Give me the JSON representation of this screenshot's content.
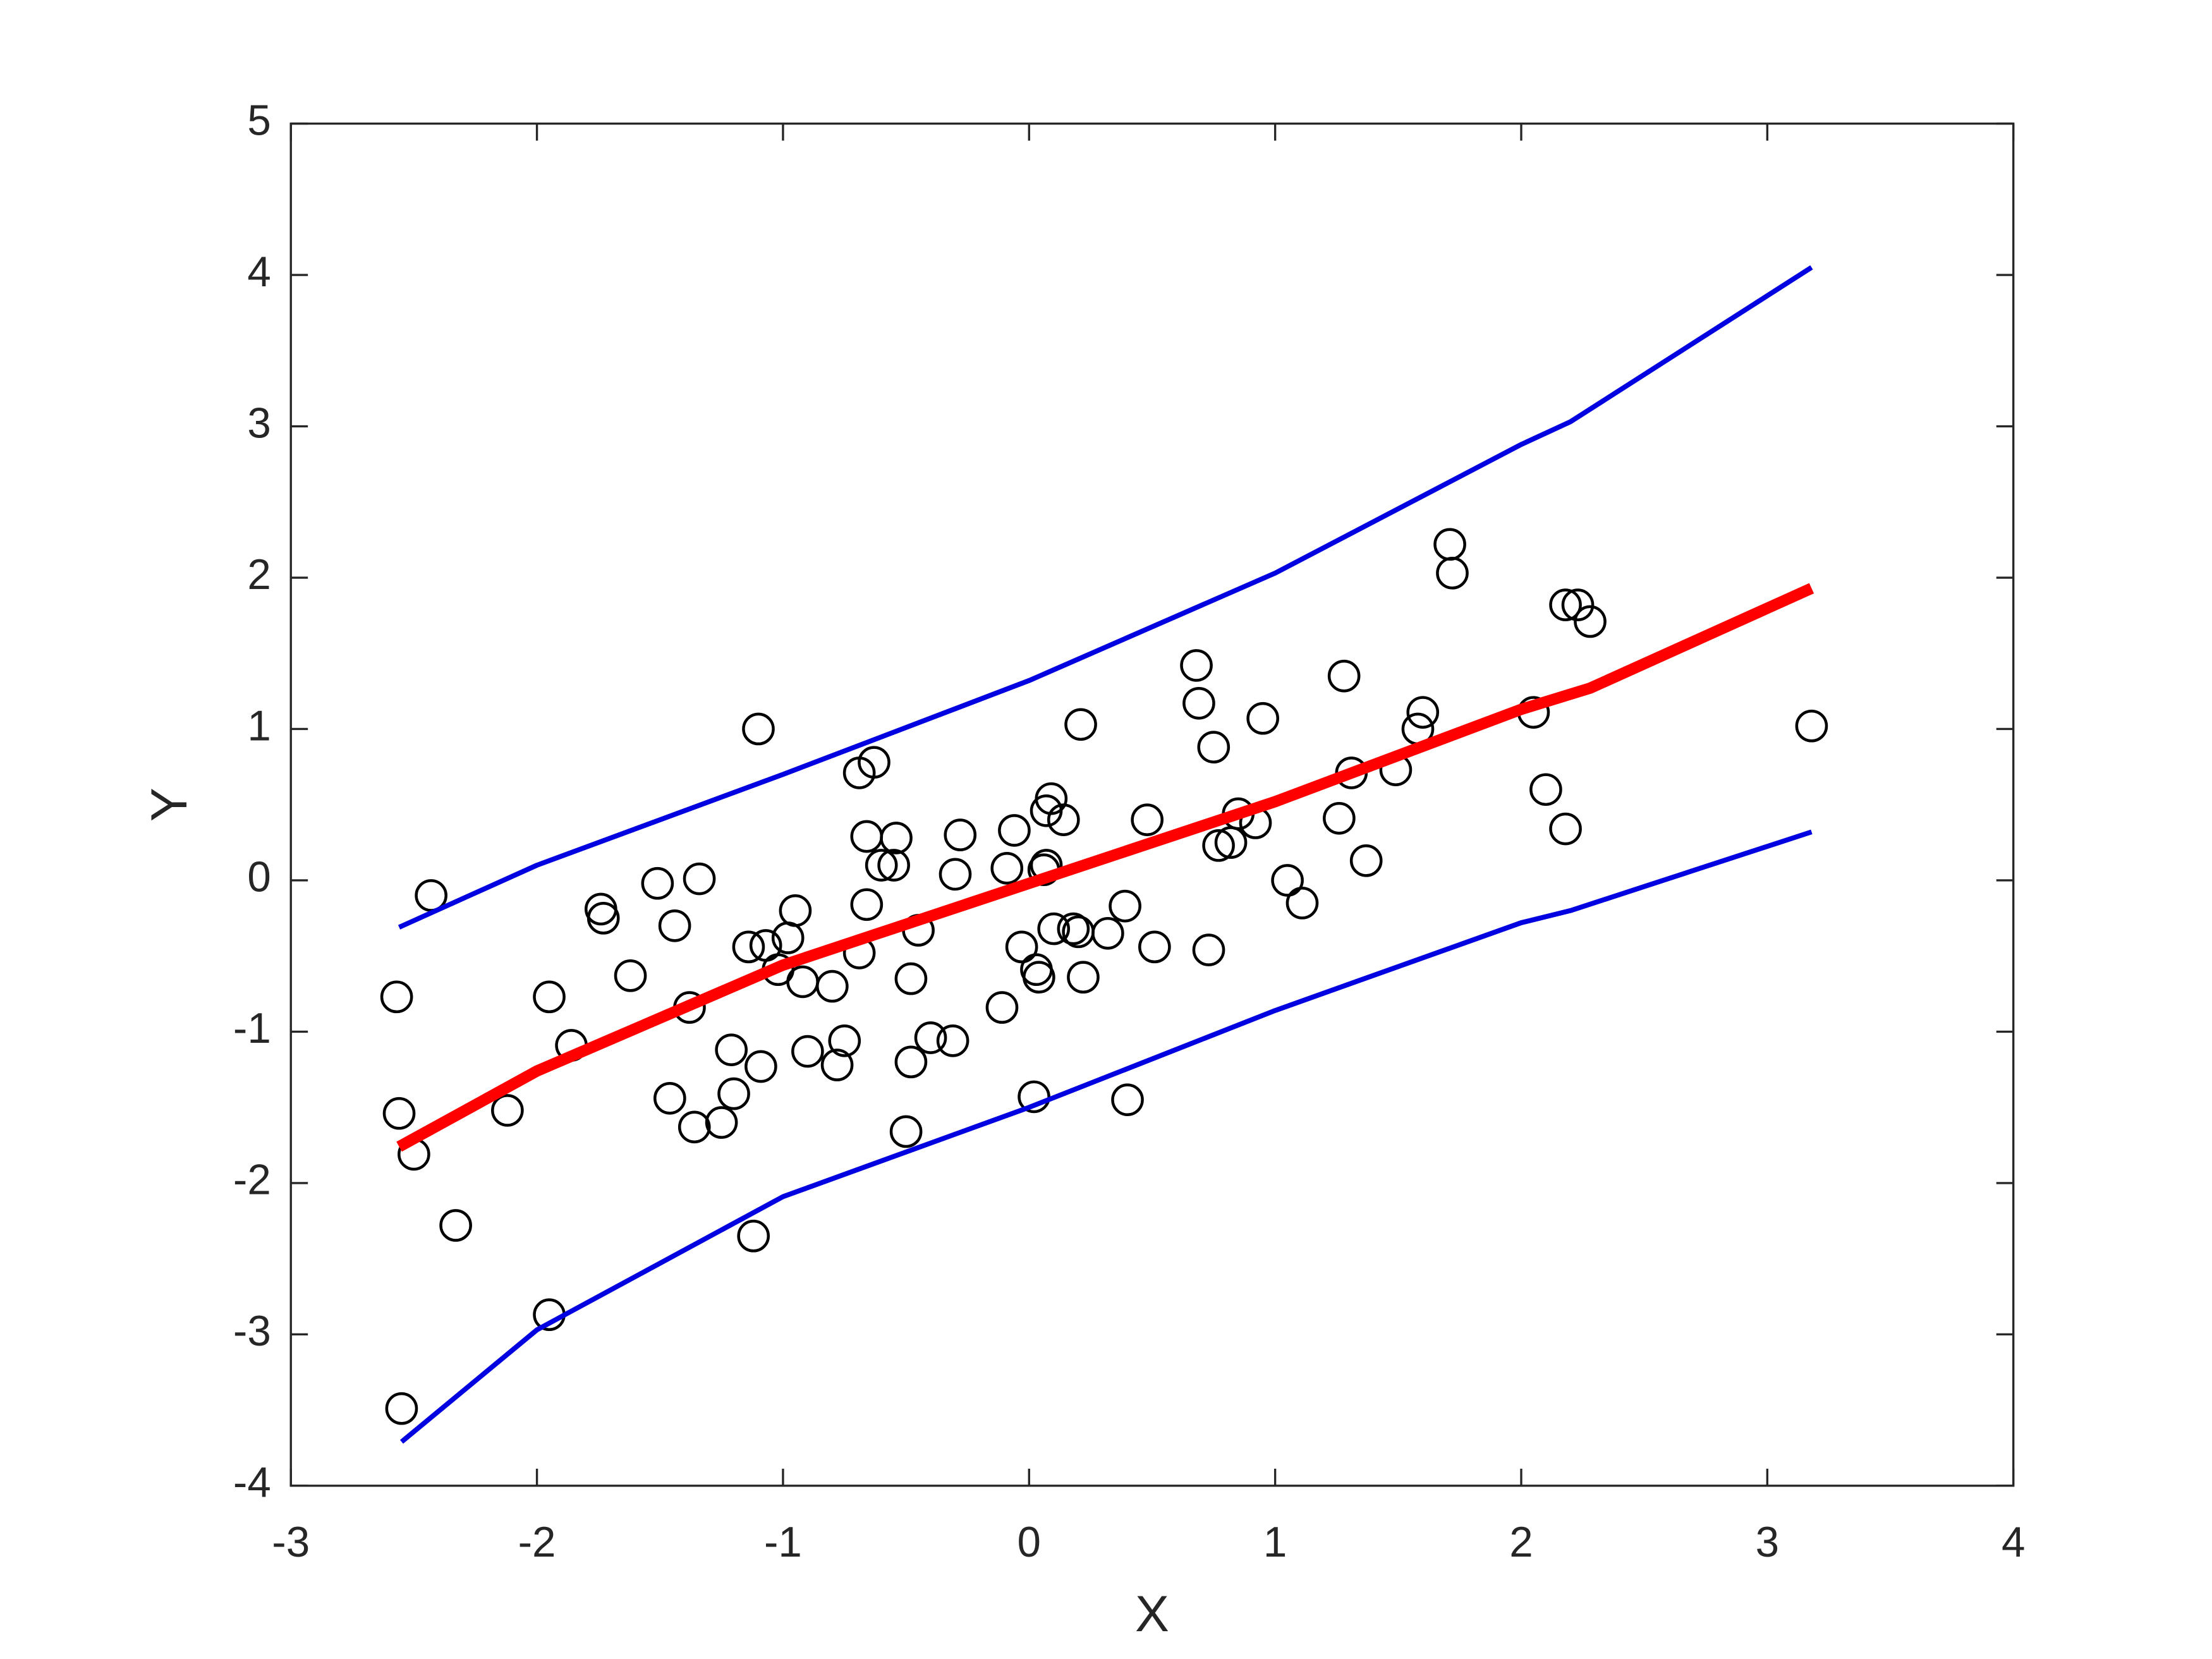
{
  "chart_data": {
    "type": "scatter",
    "x_label": "X",
    "y_label": "Y",
    "xlim": [
      -3,
      4
    ],
    "ylim": [
      -4,
      5
    ],
    "xticks": [
      -3,
      -2,
      -1,
      0,
      1,
      2,
      3,
      4
    ],
    "yticks": [
      -4,
      -3,
      -2,
      -1,
      0,
      1,
      2,
      3,
      4,
      5
    ],
    "grid": false,
    "series": [
      {
        "type": "scatter",
        "color": "#000000",
        "x": [
          -2.57,
          -2.56,
          -2.55,
          -2.5,
          -2.43,
          -2.33,
          -2.12,
          -1.95,
          -1.95,
          -1.86,
          -1.74,
          -1.73,
          -1.62,
          -1.51,
          -1.46,
          -1.44,
          -1.38,
          -1.36,
          -1.34,
          -1.25,
          -1.21,
          -1.2,
          -1.14,
          -1.12,
          -1.1,
          -1.09,
          -1.07,
          -1.02,
          -0.98,
          -0.95,
          -0.92,
          -0.9,
          -0.8,
          -0.78,
          -0.75,
          -0.69,
          -0.69,
          -0.66,
          -0.66,
          -0.63,
          -0.6,
          -0.54,
          -0.55,
          -0.5,
          -0.48,
          -0.48,
          -0.45,
          -0.4,
          -0.31,
          -0.3,
          -0.28,
          -0.11,
          -0.09,
          -0.06,
          -0.03,
          0.02,
          0.03,
          0.04,
          0.06,
          0.07,
          0.07,
          0.09,
          0.1,
          0.14,
          0.18,
          0.2,
          0.21,
          0.22,
          0.32,
          0.39,
          0.4,
          0.48,
          0.51,
          0.68,
          0.69,
          0.73,
          0.75,
          0.77,
          0.82,
          0.85,
          0.92,
          0.95,
          1.05,
          1.11,
          1.26,
          1.28,
          1.31,
          1.37,
          1.49,
          1.58,
          1.6,
          1.71,
          1.72,
          2.05,
          2.1,
          2.18,
          2.18,
          2.23,
          2.28,
          3.18
        ],
        "values": [
          -0.77,
          -1.54,
          -3.49,
          -1.81,
          -0.1,
          -2.28,
          -1.52,
          -0.77,
          -2.87,
          -1.09,
          -0.19,
          -0.25,
          -0.63,
          -0.02,
          -1.44,
          -0.3,
          -0.84,
          -1.63,
          0.01,
          -1.6,
          -1.12,
          -1.41,
          -0.44,
          -2.35,
          1.0,
          -1.23,
          -0.43,
          -0.59,
          -0.38,
          -0.2,
          -0.67,
          -1.13,
          -0.7,
          -1.22,
          -1.06,
          0.71,
          -0.48,
          0.29,
          -0.16,
          0.78,
          0.1,
          0.28,
          0.1,
          -1.66,
          -0.65,
          -1.2,
          -0.33,
          -1.04,
          -1.06,
          0.04,
          0.3,
          -0.84,
          0.08,
          0.33,
          -0.44,
          -1.43,
          -0.59,
          -0.64,
          0.07,
          0.1,
          0.46,
          0.54,
          -0.32,
          0.4,
          -0.32,
          -0.34,
          1.03,
          -0.64,
          -0.35,
          -0.17,
          -1.45,
          0.4,
          -0.44,
          1.42,
          1.17,
          -0.46,
          0.88,
          0.23,
          0.25,
          0.44,
          0.38,
          1.07,
          0.0,
          -0.15,
          0.41,
          1.35,
          0.71,
          0.13,
          0.73,
          1.0,
          1.11,
          2.22,
          2.03,
          1.11,
          0.6,
          0.34,
          1.82,
          1.82,
          1.71,
          1.02
        ]
      },
      {
        "type": "line",
        "color": "#ff0000",
        "x": [
          -2.56,
          -2,
          -1,
          0,
          1,
          2,
          2.28,
          3.18
        ],
        "values": [
          -1.76,
          -1.26,
          -0.56,
          -0.02,
          0.52,
          1.13,
          1.27,
          1.93
        ]
      },
      {
        "type": "line",
        "color": "#0000e0",
        "x": [
          -2.56,
          -2,
          -1,
          0,
          1,
          2,
          2.2,
          3.18
        ],
        "values": [
          -0.31,
          0.1,
          0.7,
          1.32,
          2.03,
          2.88,
          3.03,
          4.05
        ]
      },
      {
        "type": "line",
        "color": "#0000e0",
        "x": [
          -2.55,
          -2,
          -1,
          0,
          1,
          2,
          2.2,
          3.18
        ],
        "values": [
          -3.71,
          -2.97,
          -2.09,
          -1.5,
          -0.86,
          -0.28,
          -0.2,
          0.32
        ]
      }
    ]
  }
}
